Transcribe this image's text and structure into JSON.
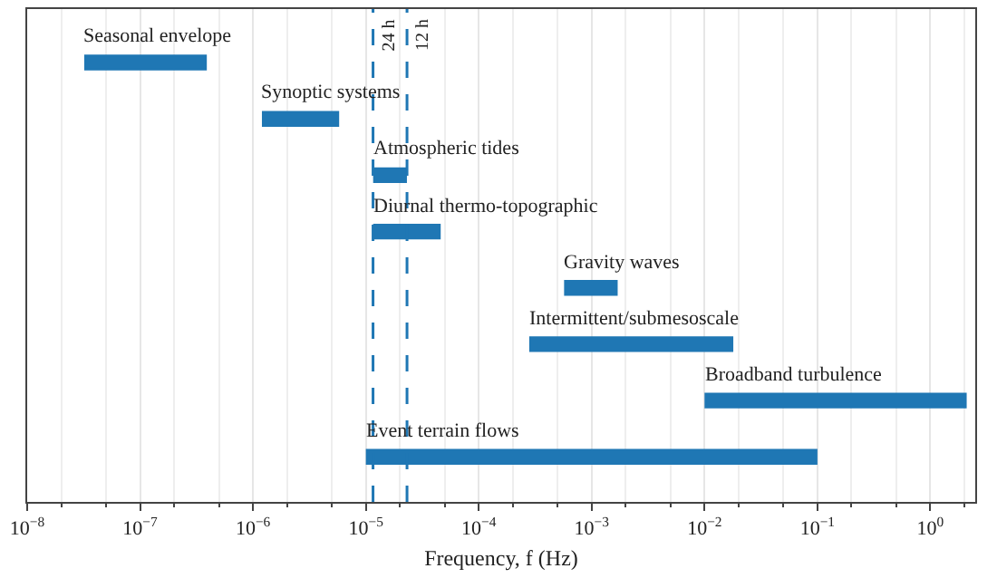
{
  "chart_data": {
    "type": "bar",
    "orientation": "horizontal",
    "xlabel": "Frequency, f (Hz)",
    "categories": [
      "Seasonal envelope",
      "Synoptic systems",
      "Atmospheric tides",
      "Diurnal thermo-topographic",
      "Gravity waves",
      "Intermittent/submesoscale",
      "Broadband turbulence",
      "Event terrain flows"
    ],
    "base": [
      3.2e-08,
      1.2e-06,
      1.16e-05,
      1.16e-05,
      0.00057,
      0.00028,
      0.01,
      1e-05
    ],
    "values": [
      3.58e-07,
      4.6e-06,
      1.15e-05,
      3.44e-05,
      0.00113,
      0.0177,
      2.09,
      0.09999
    ],
    "color": "#1f77b4",
    "log": "x",
    "xlim": [
      1e-08,
      2.5
    ],
    "xticks": [
      {
        "value": 1e-08,
        "label": "10$^{−8}$"
      },
      {
        "value": 1e-07,
        "label": "10$^{−7}$"
      },
      {
        "value": 1e-06,
        "label": "10$^{−6}$"
      },
      {
        "value": 1e-05,
        "label": "10$^{−5}$"
      },
      {
        "value": 0.0001,
        "label": "10$^{−4}$"
      },
      {
        "value": 0.001,
        "label": "10$^{−3}$"
      },
      {
        "value": 0.01,
        "label": "10$^{−2}$"
      },
      {
        "value": 0.1,
        "label": "10$^{−1}$"
      },
      {
        "value": 1,
        "label": "10$^{0}$"
      }
    ],
    "tick_labels": "x",
    "grid": "x",
    "ref_lines": [
      {
        "axis": "x",
        "value": 1.157e-05,
        "label": "24 h",
        "color": "#1f77b4",
        "line_style": "dashed"
      },
      {
        "axis": "x",
        "value": 2.315e-05,
        "label": "12 h",
        "color": "#1f77b4",
        "line_style": "dashed"
      }
    ]
  }
}
